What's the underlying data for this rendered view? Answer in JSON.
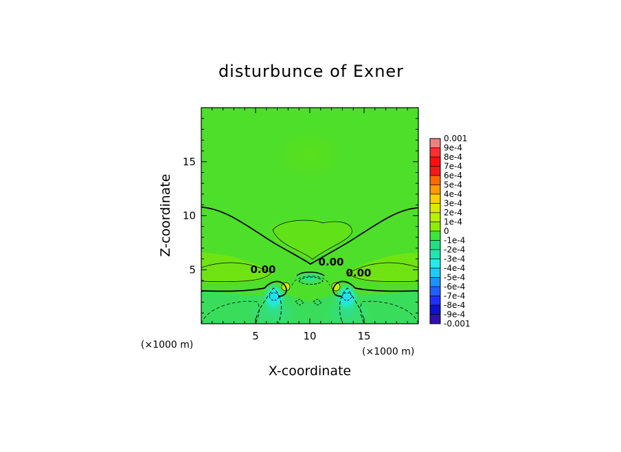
{
  "chart_data": {
    "type": "heatmap",
    "title": "disturbunce of Exner",
    "xlabel": "X-coordinate",
    "ylabel": "Z-coordinate",
    "x_unit": "(×1000 m)",
    "y_unit": "(×1000 m)",
    "xlim": [
      0,
      20
    ],
    "ylim": [
      0,
      20
    ],
    "x_ticks": [
      5,
      10,
      15
    ],
    "y_ticks": [
      5,
      10,
      15
    ],
    "contour_labels": [
      "0.00",
      "0.00",
      "0.00"
    ],
    "colorbar": {
      "labels": [
        "0.001",
        "9e-4",
        "8e-4",
        "7e-4",
        "6e-4",
        "5e-4",
        "4e-4",
        "3e-4",
        "2e-4",
        "1e-4",
        "0",
        "-1e-4",
        "-2e-4",
        "-3e-4",
        "-4e-4",
        "-5e-4",
        "-6e-4",
        "-7e-4",
        "-8e-4",
        "-9e-4",
        "-0.001"
      ],
      "colors": [
        "#f08080",
        "#ff3030",
        "#ff1010",
        "#f81818",
        "#ff6a00",
        "#ff9a00",
        "#ffd000",
        "#ddea00",
        "#b8f000",
        "#8fee00",
        "#3ee43e",
        "#22e080",
        "#22e6b0",
        "#22eee8",
        "#22c8ff",
        "#2090ff",
        "#2060ff",
        "#2030ff",
        "#1010d0",
        "#3010b0",
        "#6010a0"
      ]
    }
  }
}
